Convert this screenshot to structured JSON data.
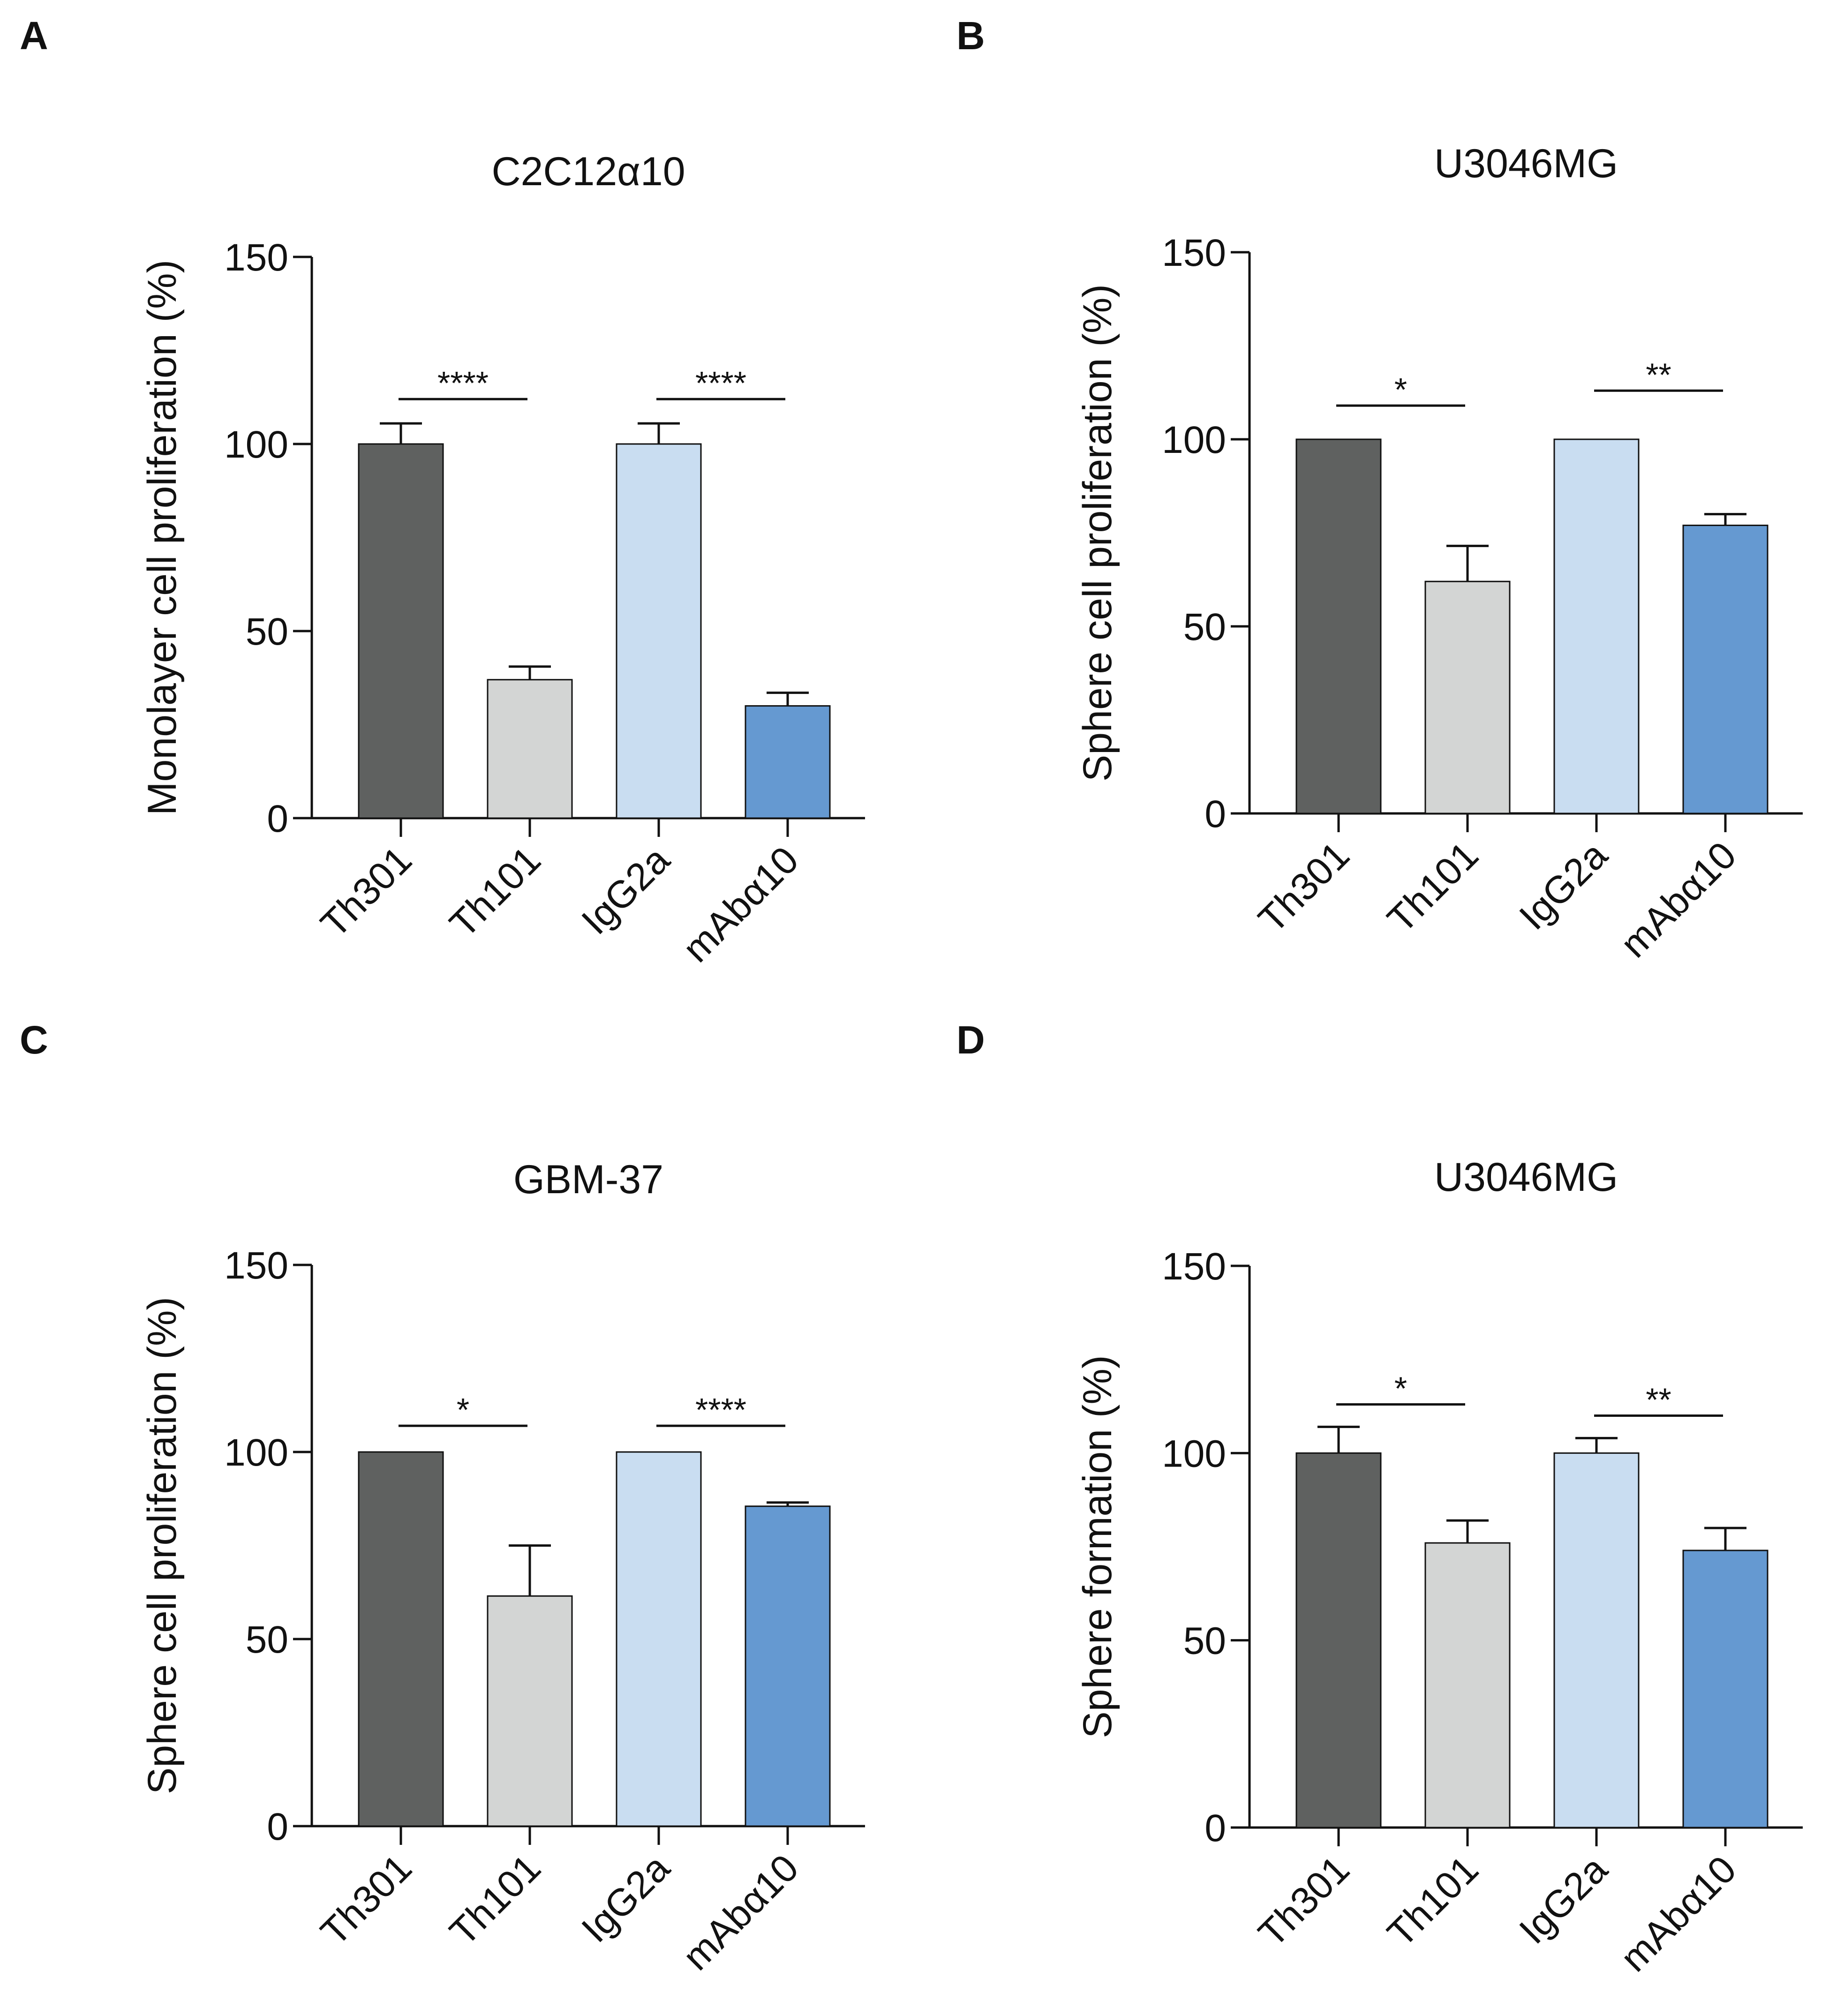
{
  "colors": {
    "Th301": "#5f6160",
    "Th101": "#d3d5d4",
    "IgG2a": "#c9ddf1",
    "mAbα10": "#6599d1",
    "axis": "#111111"
  },
  "chart_data": [
    {
      "panel": "A",
      "type": "bar",
      "title": "C2C12α10",
      "xlabel": "",
      "ylabel": "Monolayer cell proliferation (%)",
      "categories": [
        "Th301",
        "Th101",
        "IgG2a",
        "mAbα10"
      ],
      "values": [
        100,
        37,
        100,
        30
      ],
      "errors": [
        5.5,
        3.5,
        5.5,
        3.5
      ],
      "ylim": [
        0,
        150
      ],
      "yticks": [
        0,
        50,
        100,
        150
      ],
      "significance": [
        {
          "from": 0,
          "to": 1,
          "label": "****",
          "y": 112
        },
        {
          "from": 2,
          "to": 3,
          "label": "****",
          "y": 112
        }
      ]
    },
    {
      "panel": "B",
      "type": "bar",
      "title": "U3046MG",
      "xlabel": "",
      "ylabel": "Sphere cell proliferation (%)",
      "categories": [
        "Th301",
        "Th101",
        "IgG2a",
        "mAbα10"
      ],
      "values": [
        100,
        62,
        100,
        77
      ],
      "errors": [
        0,
        9.5,
        0,
        3
      ],
      "ylim": [
        0,
        150
      ],
      "yticks": [
        0,
        50,
        100,
        150
      ],
      "significance": [
        {
          "from": 0,
          "to": 1,
          "label": "*",
          "y": 109
        },
        {
          "from": 2,
          "to": 3,
          "label": "**",
          "y": 113
        }
      ]
    },
    {
      "panel": "C",
      "type": "bar",
      "title": "GBM-37",
      "xlabel": "",
      "ylabel": "Sphere cell proliferation (%)",
      "categories": [
        "Th301",
        "Th101",
        "IgG2a",
        "mAbα10"
      ],
      "values": [
        100,
        61.5,
        100,
        85.5
      ],
      "errors": [
        0,
        13.5,
        0,
        1
      ],
      "ylim": [
        0,
        150
      ],
      "yticks": [
        0,
        50,
        100,
        150
      ],
      "significance": [
        {
          "from": 0,
          "to": 1,
          "label": "*",
          "y": 107
        },
        {
          "from": 2,
          "to": 3,
          "label": "****",
          "y": 107
        }
      ]
    },
    {
      "panel": "D",
      "type": "bar",
      "title": "U3046MG",
      "xlabel": "",
      "ylabel": "Sphere formation (%)",
      "categories": [
        "Th301",
        "Th101",
        "IgG2a",
        "mAbα10"
      ],
      "values": [
        100,
        76,
        100,
        74
      ],
      "errors": [
        7,
        6,
        4,
        6
      ],
      "ylim": [
        0,
        150
      ],
      "yticks": [
        0,
        50,
        100,
        150
      ],
      "significance": [
        {
          "from": 0,
          "to": 1,
          "label": "*",
          "y": 113
        },
        {
          "from": 2,
          "to": 3,
          "label": "**",
          "y": 110
        }
      ]
    }
  ]
}
